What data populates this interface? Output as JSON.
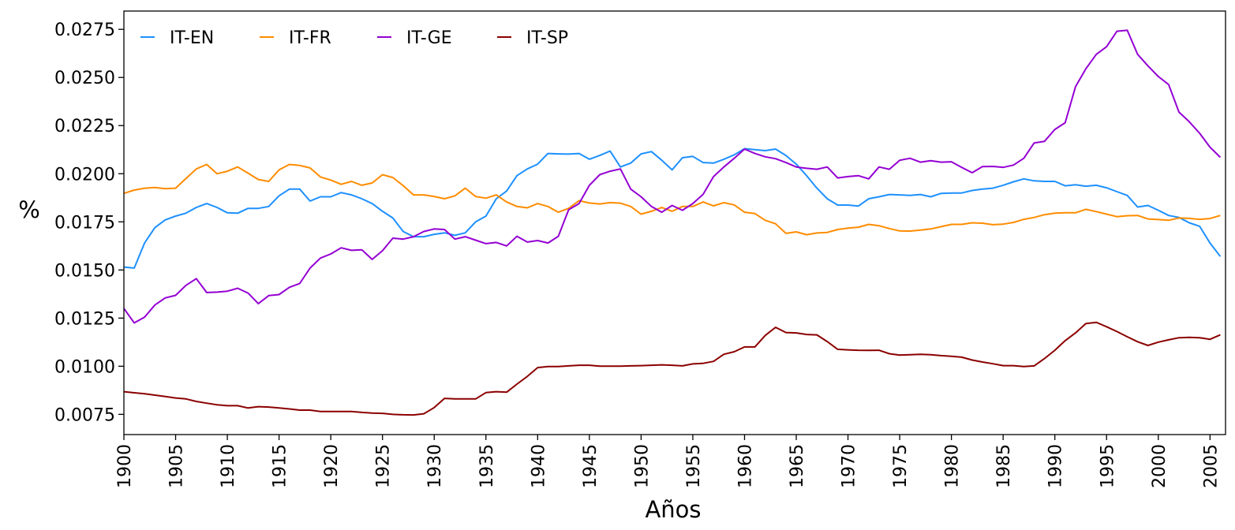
{
  "chart_data": {
    "type": "line",
    "title": "",
    "xlabel": "Años",
    "ylabel": "%",
    "xlim": [
      1900,
      2006.5
    ],
    "ylim": [
      0.00645,
      0.02845
    ],
    "grid": false,
    "legend": {
      "placement": "top-left",
      "columns": 4
    },
    "xticks": [
      1900,
      1905,
      1910,
      1915,
      1920,
      1925,
      1930,
      1935,
      1940,
      1945,
      1950,
      1955,
      1960,
      1965,
      1970,
      1975,
      1980,
      1985,
      1990,
      1995,
      2000,
      2005
    ],
    "xtick_labels": [
      "1900",
      "1905",
      "1910",
      "1915",
      "1920",
      "1925",
      "1930",
      "1935",
      "1940",
      "1945",
      "1950",
      "1955",
      "1960",
      "1965",
      "1970",
      "1975",
      "1980",
      "1985",
      "1990",
      "1995",
      "2000",
      "2005"
    ],
    "yticks": [
      0.0075,
      0.01,
      0.0125,
      0.015,
      0.0175,
      0.02,
      0.0225,
      0.025,
      0.0275
    ],
    "ytick_labels": [
      "0.0075",
      "0.0100",
      "0.0125",
      "0.0150",
      "0.0175",
      "0.0200",
      "0.0225",
      "0.0250",
      "0.0275"
    ],
    "x_start": 1900,
    "x_step": 1,
    "series": [
      {
        "name": "IT-EN",
        "color": "#1e90ff",
        "values": [
          0.01515,
          0.0151,
          0.0164,
          0.0172,
          0.0176,
          0.0178,
          0.01795,
          0.01825,
          0.01845,
          0.01825,
          0.01797,
          0.01795,
          0.0182,
          0.0182,
          0.0183,
          0.01885,
          0.0192,
          0.0192,
          0.01858,
          0.0188,
          0.0188,
          0.01902,
          0.0189,
          0.0187,
          0.01845,
          0.01805,
          0.0177,
          0.017,
          0.01673,
          0.01673,
          0.01685,
          0.01693,
          0.0168,
          0.01693,
          0.0175,
          0.0178,
          0.0187,
          0.0191,
          0.0199,
          0.02025,
          0.0205,
          0.02105,
          0.02103,
          0.02102,
          0.02105,
          0.02075,
          0.02095,
          0.02118,
          0.02035,
          0.02055,
          0.02103,
          0.02115,
          0.0207,
          0.0202,
          0.02083,
          0.0209,
          0.02058,
          0.02055,
          0.02075,
          0.02098,
          0.0213,
          0.02125,
          0.0212,
          0.02128,
          0.02095,
          0.0205,
          0.0199,
          0.01925,
          0.0187,
          0.01837,
          0.01837,
          0.01832,
          0.0187,
          0.0188,
          0.01892,
          0.0189,
          0.01887,
          0.01892,
          0.0188,
          0.01898,
          0.019,
          0.019,
          0.01913,
          0.0192,
          0.01925,
          0.0194,
          0.01958,
          0.01973,
          0.01963,
          0.0196,
          0.0196,
          0.01937,
          0.01943,
          0.01935,
          0.0194,
          0.01927,
          0.01907,
          0.01887,
          0.01827,
          0.01835,
          0.0181,
          0.01783,
          0.01773,
          0.01745,
          0.01727,
          0.0164,
          0.0157
        ]
      },
      {
        "name": "IT-FR",
        "color": "#ff8c00",
        "values": [
          0.01898,
          0.01915,
          0.01925,
          0.01928,
          0.01922,
          0.01925,
          0.01975,
          0.02025,
          0.02048,
          0.02,
          0.02013,
          0.02035,
          0.02003,
          0.0197,
          0.0196,
          0.0202,
          0.02048,
          0.02043,
          0.0203,
          0.01983,
          0.01967,
          0.01945,
          0.0196,
          0.0194,
          0.01952,
          0.01995,
          0.0198,
          0.01938,
          0.0189,
          0.0189,
          0.01882,
          0.0187,
          0.01885,
          0.01925,
          0.01882,
          0.01873,
          0.0189,
          0.01853,
          0.0183,
          0.01823,
          0.01845,
          0.0183,
          0.018,
          0.0182,
          0.0186,
          0.01848,
          0.01843,
          0.0185,
          0.01847,
          0.0183,
          0.0179,
          0.01805,
          0.01825,
          0.01805,
          0.0183,
          0.0183,
          0.01853,
          0.01833,
          0.0185,
          0.01838,
          0.018,
          0.01793,
          0.01758,
          0.0174,
          0.0169,
          0.01698,
          0.01683,
          0.01692,
          0.01695,
          0.0171,
          0.01717,
          0.01722,
          0.01737,
          0.0173,
          0.01715,
          0.01703,
          0.01702,
          0.01707,
          0.01713,
          0.01725,
          0.01737,
          0.01737,
          0.01745,
          0.01743,
          0.01735,
          0.01738,
          0.01747,
          0.01763,
          0.01773,
          0.01787,
          0.01795,
          0.01797,
          0.01797,
          0.01815,
          0.01803,
          0.0179,
          0.01777,
          0.01782,
          0.01783,
          0.01765,
          0.01762,
          0.01758,
          0.0177,
          0.01768,
          0.01763,
          0.01767,
          0.01783
        ]
      },
      {
        "name": "IT-GE",
        "color": "#9400d3",
        "values": [
          0.013,
          0.01225,
          0.01255,
          0.01318,
          0.01355,
          0.01368,
          0.0142,
          0.01455,
          0.01383,
          0.01385,
          0.0139,
          0.01405,
          0.0138,
          0.01325,
          0.01367,
          0.01372,
          0.0141,
          0.0143,
          0.0151,
          0.01562,
          0.01583,
          0.01615,
          0.01602,
          0.01605,
          0.01555,
          0.016,
          0.01665,
          0.0166,
          0.01673,
          0.017,
          0.01713,
          0.0171,
          0.0166,
          0.01673,
          0.01655,
          0.01637,
          0.01643,
          0.01625,
          0.01675,
          0.01645,
          0.01653,
          0.0164,
          0.01675,
          0.01813,
          0.01845,
          0.0194,
          0.01995,
          0.02013,
          0.02025,
          0.0192,
          0.0188,
          0.0183,
          0.018,
          0.01835,
          0.0181,
          0.01845,
          0.01893,
          0.01985,
          0.02035,
          0.0208,
          0.02128,
          0.02105,
          0.02088,
          0.02078,
          0.02058,
          0.02035,
          0.02028,
          0.02023,
          0.02035,
          0.01978,
          0.01985,
          0.0199,
          0.01973,
          0.02035,
          0.02023,
          0.0207,
          0.0208,
          0.0206,
          0.02068,
          0.0206,
          0.02062,
          0.02033,
          0.02005,
          0.02037,
          0.02038,
          0.02033,
          0.02045,
          0.0208,
          0.0216,
          0.02168,
          0.0223,
          0.02265,
          0.02452,
          0.02545,
          0.0262,
          0.0266,
          0.0274,
          0.02745,
          0.0262,
          0.0256,
          0.02505,
          0.02463,
          0.0232,
          0.0227,
          0.0221,
          0.02138,
          0.02085
        ]
      },
      {
        "name": "IT-SP",
        "color": "#8b0000",
        "values": [
          0.00868,
          0.00862,
          0.00857,
          0.0085,
          0.00843,
          0.00835,
          0.0083,
          0.00817,
          0.00808,
          0.008,
          0.00795,
          0.00795,
          0.00783,
          0.0079,
          0.00788,
          0.00783,
          0.00778,
          0.00772,
          0.00772,
          0.00765,
          0.00765,
          0.00765,
          0.00765,
          0.0076,
          0.00757,
          0.00755,
          0.0075,
          0.00748,
          0.00747,
          0.00753,
          0.00785,
          0.00833,
          0.0083,
          0.0083,
          0.0083,
          0.00863,
          0.00868,
          0.00865,
          0.00907,
          0.00947,
          0.00993,
          0.00998,
          0.00998,
          0.01002,
          0.01005,
          0.01005,
          0.01,
          0.01,
          0.01,
          0.01002,
          0.01003,
          0.01005,
          0.01007,
          0.01005,
          0.01002,
          0.01012,
          0.01015,
          0.01025,
          0.01062,
          0.01075,
          0.011,
          0.011,
          0.0116,
          0.01202,
          0.01175,
          0.01173,
          0.01165,
          0.01163,
          0.01128,
          0.01088,
          0.01085,
          0.01083,
          0.01082,
          0.01083,
          0.01065,
          0.01058,
          0.0106,
          0.01062,
          0.0106,
          0.01055,
          0.01052,
          0.01047,
          0.01032,
          0.01022,
          0.01013,
          0.01003,
          0.01003,
          0.00998,
          0.01002,
          0.0104,
          0.01083,
          0.01133,
          0.01173,
          0.01222,
          0.01228,
          0.01205,
          0.0118,
          0.01153,
          0.01127,
          0.01108,
          0.01125,
          0.01137,
          0.01148,
          0.0115,
          0.01148,
          0.0114,
          0.01163
        ]
      }
    ]
  }
}
